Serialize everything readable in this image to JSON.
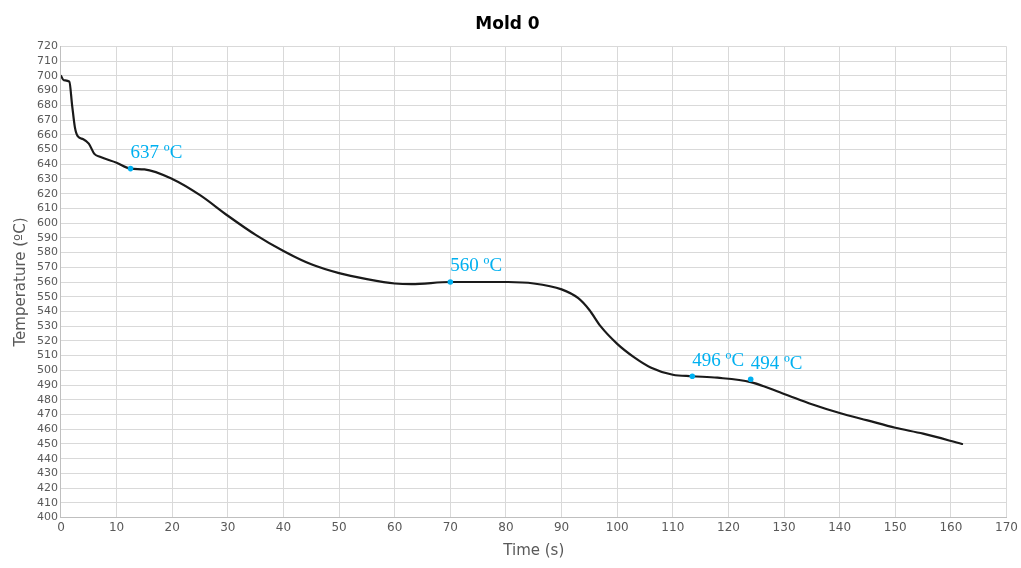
{
  "chart_data": {
    "type": "line",
    "title": "Mold 0",
    "xlabel": "Time (s)",
    "ylabel": "Temperature (ºC)",
    "x": [
      0,
      0.5,
      1.5,
      2,
      2.5,
      3,
      4,
      5,
      6,
      7,
      10,
      12.5,
      15,
      20,
      25,
      30,
      35,
      40,
      45,
      50,
      55,
      60,
      63,
      70,
      80,
      85,
      90,
      93,
      95,
      97,
      100,
      103,
      106,
      110,
      113.5,
      118,
      124,
      130,
      135,
      140,
      145,
      150,
      155,
      162
    ],
    "series": [
      {
        "color": "#1a1a1a",
        "values": [
          700,
          697,
          696,
          680,
          665,
          659,
          657,
          654,
          647,
          645,
          641,
          637,
          636.5,
          630,
          619,
          605,
          592,
          581,
          572,
          566,
          562,
          559,
          558.5,
          560,
          560,
          559,
          555,
          549,
          541,
          530,
          518,
          509,
          502,
          497,
          496,
          495,
          492,
          484,
          477,
          471,
          466,
          461,
          457,
          450
        ]
      }
    ],
    "xlim": [
      0,
      170
    ],
    "xticks": [
      0,
      10,
      20,
      30,
      40,
      50,
      60,
      70,
      80,
      90,
      100,
      110,
      120,
      130,
      140,
      150,
      160,
      170
    ],
    "ylim": [
      400,
      720
    ],
    "yticks": [
      400,
      410,
      420,
      430,
      440,
      450,
      460,
      470,
      480,
      490,
      500,
      510,
      520,
      530,
      540,
      550,
      560,
      570,
      580,
      590,
      600,
      610,
      620,
      630,
      640,
      650,
      660,
      670,
      680,
      690,
      700,
      710,
      720
    ],
    "grid": true,
    "legend": false,
    "marker": "none",
    "line_style": "solid",
    "annotations": [
      {
        "text": "637 ºC",
        "x": 12.5,
        "y": 637
      },
      {
        "text": "560 ºC",
        "x": 70,
        "y": 560
      },
      {
        "text": "496 ºC",
        "x": 113.5,
        "y": 496
      },
      {
        "text": "494 ºC",
        "x": 124,
        "y": 494
      }
    ]
  }
}
